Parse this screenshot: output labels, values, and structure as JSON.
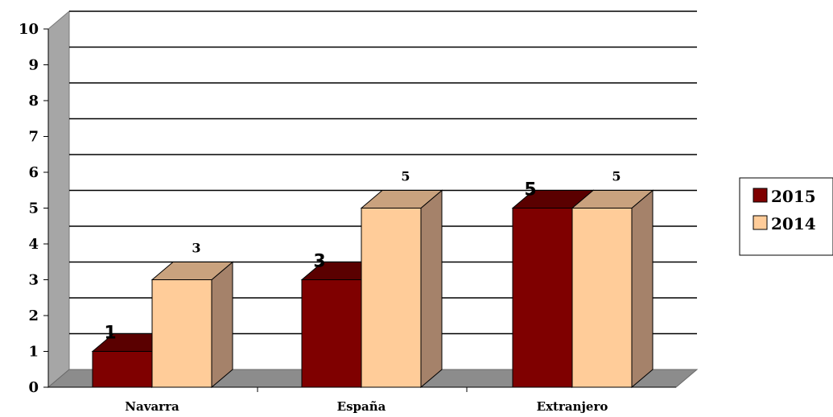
{
  "chart_data": {
    "type": "bar",
    "categories": [
      "Navarra",
      "España",
      "Extranjero"
    ],
    "series": [
      {
        "name": "2015",
        "values": [
          1,
          3,
          5
        ],
        "color": "#7f0000",
        "top_color": "#5a0000",
        "side_color": "#4a0000"
      },
      {
        "name": "2014",
        "values": [
          3,
          5,
          5
        ],
        "color": "#ffcc99",
        "top_color": "#c9a27e",
        "side_color": "#a5826a"
      }
    ],
    "ylim": [
      0,
      10
    ],
    "yticks": [
      "0",
      "1",
      "2",
      "3",
      "4",
      "5",
      "6",
      "7",
      "8",
      "9",
      "10"
    ],
    "grid": true,
    "legend_position": "right",
    "colors": {
      "floor": "#8c8c8c",
      "wall": "#a6a6a6",
      "gridline": "#000000"
    }
  }
}
